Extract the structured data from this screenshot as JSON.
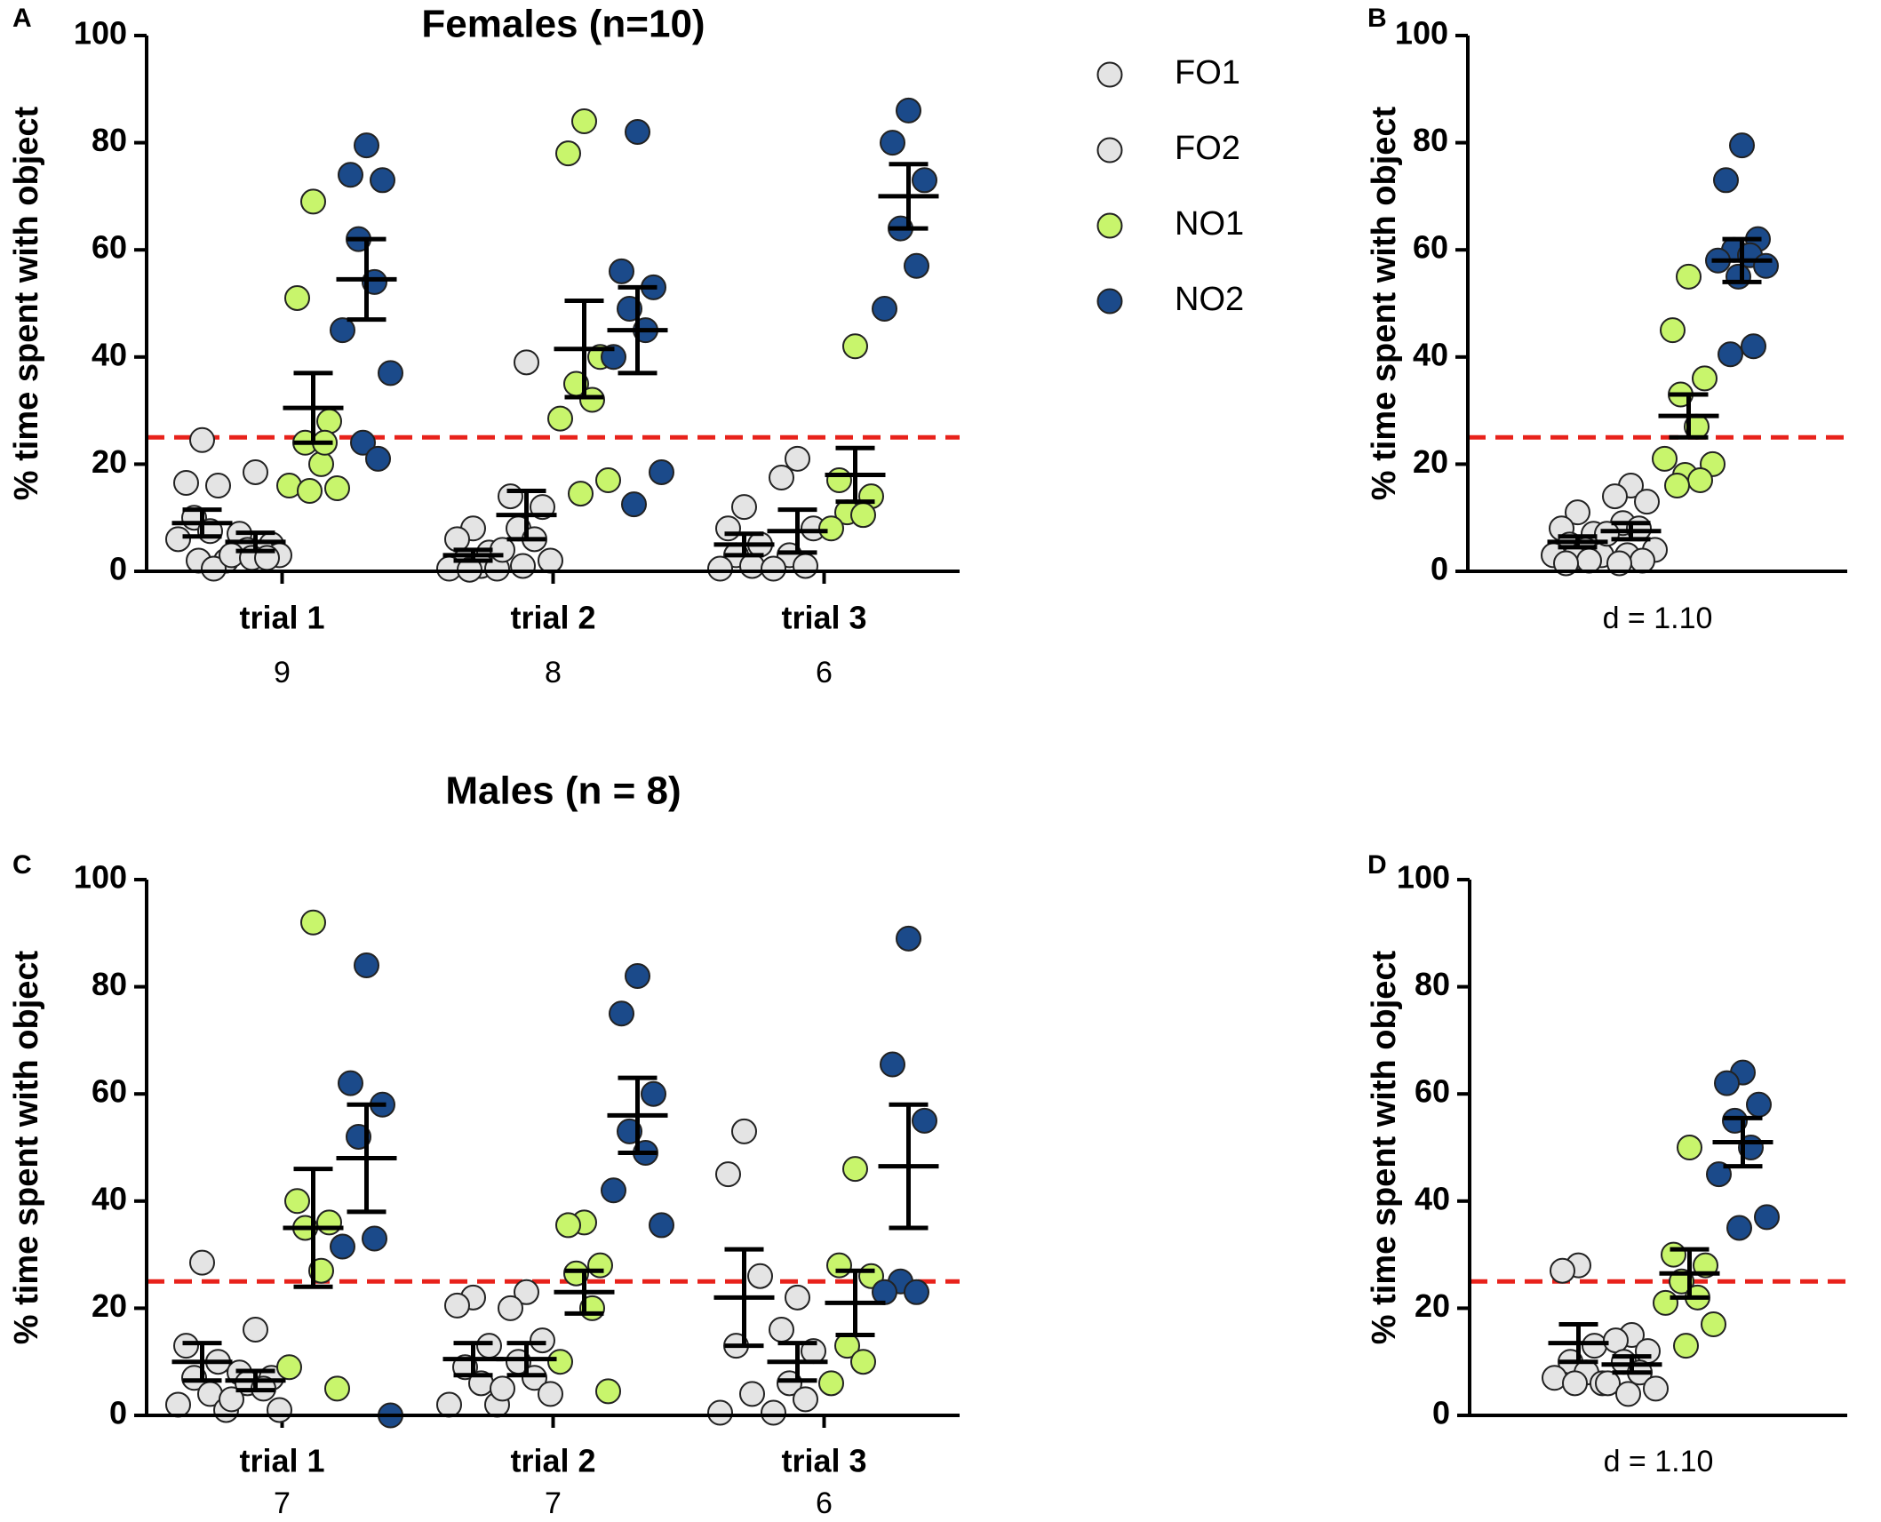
{
  "chart_data": [
    {
      "type": "dot",
      "panel_label": "A",
      "title": "Females (n=10)",
      "ylabel": "% time spent with object",
      "categories": [
        "trial 1",
        "trial 2",
        "trial 3"
      ],
      "category_counts": [
        9,
        8,
        6
      ],
      "ylim": [
        0,
        100
      ],
      "yticks": [
        0,
        20,
        40,
        60,
        80,
        100
      ],
      "reference_line": 25,
      "reference_color": "#e8221b",
      "legend": true,
      "series": [
        {
          "name": "FO1",
          "color": "#e4e4e4",
          "values": [
            [
              24.5,
              16.5,
              16,
              10,
              7.5,
              6,
              2,
              2,
              0.5
            ],
            [
              8,
              6,
              3.5,
              2,
              1,
              0.5,
              0.5,
              0.3
            ],
            [
              12,
              8,
              5,
              3,
              1,
              0.5
            ]
          ],
          "means": [
            9,
            3,
            5
          ],
          "errors": [
            2.5,
            1,
            2
          ]
        },
        {
          "name": "FO2",
          "color": "#e4e4e4",
          "values": [
            [
              18.5,
              7,
              5,
              4,
              3.5,
              3,
              3,
              2.5,
              2.5
            ],
            [
              39,
              14,
              12,
              8,
              6,
              4,
              2,
              1
            ],
            [
              21,
              17.5,
              8,
              3,
              1,
              0.5
            ]
          ],
          "means": [
            5.5,
            10.5,
            7.5
          ],
          "errors": [
            1.7,
            4.5,
            4
          ]
        },
        {
          "name": "NO1",
          "color": "#c8f56c",
          "values": [
            [
              69,
              51,
              28,
              24,
              20,
              16,
              15.5,
              15,
              24
            ],
            [
              84,
              78,
              40,
              35,
              32,
              28.5,
              17,
              14.5
            ],
            [
              42,
              17,
              14,
              11,
              10.5,
              8
            ]
          ],
          "means": [
            30.5,
            41.5,
            18
          ],
          "errors": [
            6.5,
            9,
            5
          ]
        },
        {
          "name": "NO2",
          "color": "#1b4a8a",
          "values": [
            [
              79.5,
              74,
              73,
              62,
              54,
              45,
              37,
              24,
              21
            ],
            [
              82,
              56,
              53,
              49,
              45,
              40,
              18.5,
              12.5
            ],
            [
              86,
              80,
              73,
              64,
              57,
              49
            ]
          ],
          "means": [
            54.5,
            45,
            70
          ],
          "errors": [
            7.5,
            8,
            6
          ]
        }
      ]
    },
    {
      "type": "dot",
      "panel_label": "B",
      "ylabel": "% time spent with object",
      "xlabel": "d = 1.10",
      "categories": [
        null
      ],
      "ylim": [
        0,
        100
      ],
      "yticks": [
        0,
        20,
        40,
        60,
        80,
        100
      ],
      "reference_line": 25,
      "reference_color": "#e8221b",
      "series": [
        {
          "name": "FO1",
          "color": "#e4e4e4",
          "values": [
            [
              11,
              8,
              7,
              5,
              4,
              3,
              3,
              2.5,
              2,
              1.5
            ]
          ],
          "means": [
            5.5
          ],
          "errors": [
            1
          ]
        },
        {
          "name": "FO2",
          "color": "#e4e4e4",
          "values": [
            [
              16,
              14,
              13,
              9,
              8,
              7,
              4,
              3,
              2,
              1.5
            ]
          ],
          "means": [
            7.5
          ],
          "errors": [
            1.5
          ]
        },
        {
          "name": "NO1",
          "color": "#c8f56c",
          "values": [
            [
              55,
              45,
              36,
              33,
              27,
              21,
              20,
              18,
              17,
              16
            ]
          ],
          "means": [
            29
          ],
          "errors": [
            4
          ]
        },
        {
          "name": "NO2",
          "color": "#1b4a8a",
          "values": [
            [
              79.5,
              73,
              62,
              60,
              59,
              58,
              57,
              55,
              42,
              40.5
            ]
          ],
          "means": [
            58
          ],
          "errors": [
            4
          ]
        }
      ]
    },
    {
      "type": "dot",
      "panel_label": "C",
      "title": "Males (n = 8)",
      "ylabel": "% time spent with object",
      "categories": [
        "trial 1",
        "trial 2",
        "trial 3"
      ],
      "category_counts": [
        7,
        7,
        6
      ],
      "ylim": [
        0,
        100
      ],
      "yticks": [
        0,
        20,
        40,
        60,
        80,
        100
      ],
      "reference_line": 25,
      "reference_color": "#e8221b",
      "series": [
        {
          "name": "FO1",
          "color": "#e4e4e4",
          "values": [
            [
              28.5,
              13,
              10,
              7,
              4,
              2,
              1
            ],
            [
              22,
              20.5,
              13,
              9,
              6,
              2,
              2
            ],
            [
              53,
              45,
              26,
              13,
              4,
              0.5
            ]
          ],
          "means": [
            10,
            10.5,
            22
          ],
          "errors": [
            3.5,
            3,
            9
          ]
        },
        {
          "name": "FO2",
          "color": "#e4e4e4",
          "values": [
            [
              16,
              8,
              7,
              6,
              5,
              3,
              1
            ],
            [
              23,
              20,
              14,
              10,
              7,
              5,
              4
            ],
            [
              22,
              16,
              12,
              6,
              3,
              0.5
            ]
          ],
          "means": [
            6.5,
            10.5,
            10
          ],
          "errors": [
            1.8,
            3,
            3.5
          ]
        },
        {
          "name": "NO1",
          "color": "#c8f56c",
          "values": [
            [
              92,
              40,
              36,
              35,
              27,
              9,
              5
            ],
            [
              36,
              35.5,
              28,
              26.5,
              20,
              10,
              4.5
            ],
            [
              46,
              28,
              26,
              13,
              10,
              6
            ]
          ],
          "means": [
            35,
            23,
            21
          ],
          "errors": [
            11,
            4,
            6
          ]
        },
        {
          "name": "NO2",
          "color": "#1b4a8a",
          "values": [
            [
              84,
              62,
              58,
              52,
              33,
              31.5,
              0
            ],
            [
              82,
              75,
              60,
              53,
              49,
              42,
              35.5
            ],
            [
              89,
              65.5,
              55,
              25,
              23,
              23
            ]
          ],
          "means": [
            48,
            56,
            46.5
          ],
          "errors": [
            10,
            7,
            11.5
          ]
        }
      ]
    },
    {
      "type": "dot",
      "panel_label": "D",
      "ylabel": "% time spent with object",
      "xlabel": "d = 1.10",
      "categories": [
        null
      ],
      "ylim": [
        0,
        100
      ],
      "yticks": [
        0,
        20,
        40,
        60,
        80,
        100
      ],
      "reference_line": 25,
      "reference_color": "#e8221b",
      "series": [
        {
          "name": "FO1",
          "color": "#e4e4e4",
          "values": [
            [
              28,
              27,
              13,
              10,
              8,
              7,
              6,
              6
            ]
          ],
          "means": [
            13.5
          ],
          "errors": [
            3.5
          ]
        },
        {
          "name": "FO2",
          "color": "#e4e4e4",
          "values": [
            [
              15,
              14,
              12,
              10,
              8,
              6,
              5,
              4
            ]
          ],
          "means": [
            9.5
          ],
          "errors": [
            1.5
          ]
        },
        {
          "name": "NO1",
          "color": "#c8f56c",
          "values": [
            [
              50,
              30,
              28,
              25,
              22,
              21,
              17,
              13
            ]
          ],
          "means": [
            26.5
          ],
          "errors": [
            4.5
          ]
        },
        {
          "name": "NO2",
          "color": "#1b4a8a",
          "values": [
            [
              64,
              62,
              58,
              55,
              50,
              45,
              37,
              35
            ]
          ],
          "means": [
            51
          ],
          "errors": [
            4.5
          ]
        }
      ]
    }
  ]
}
